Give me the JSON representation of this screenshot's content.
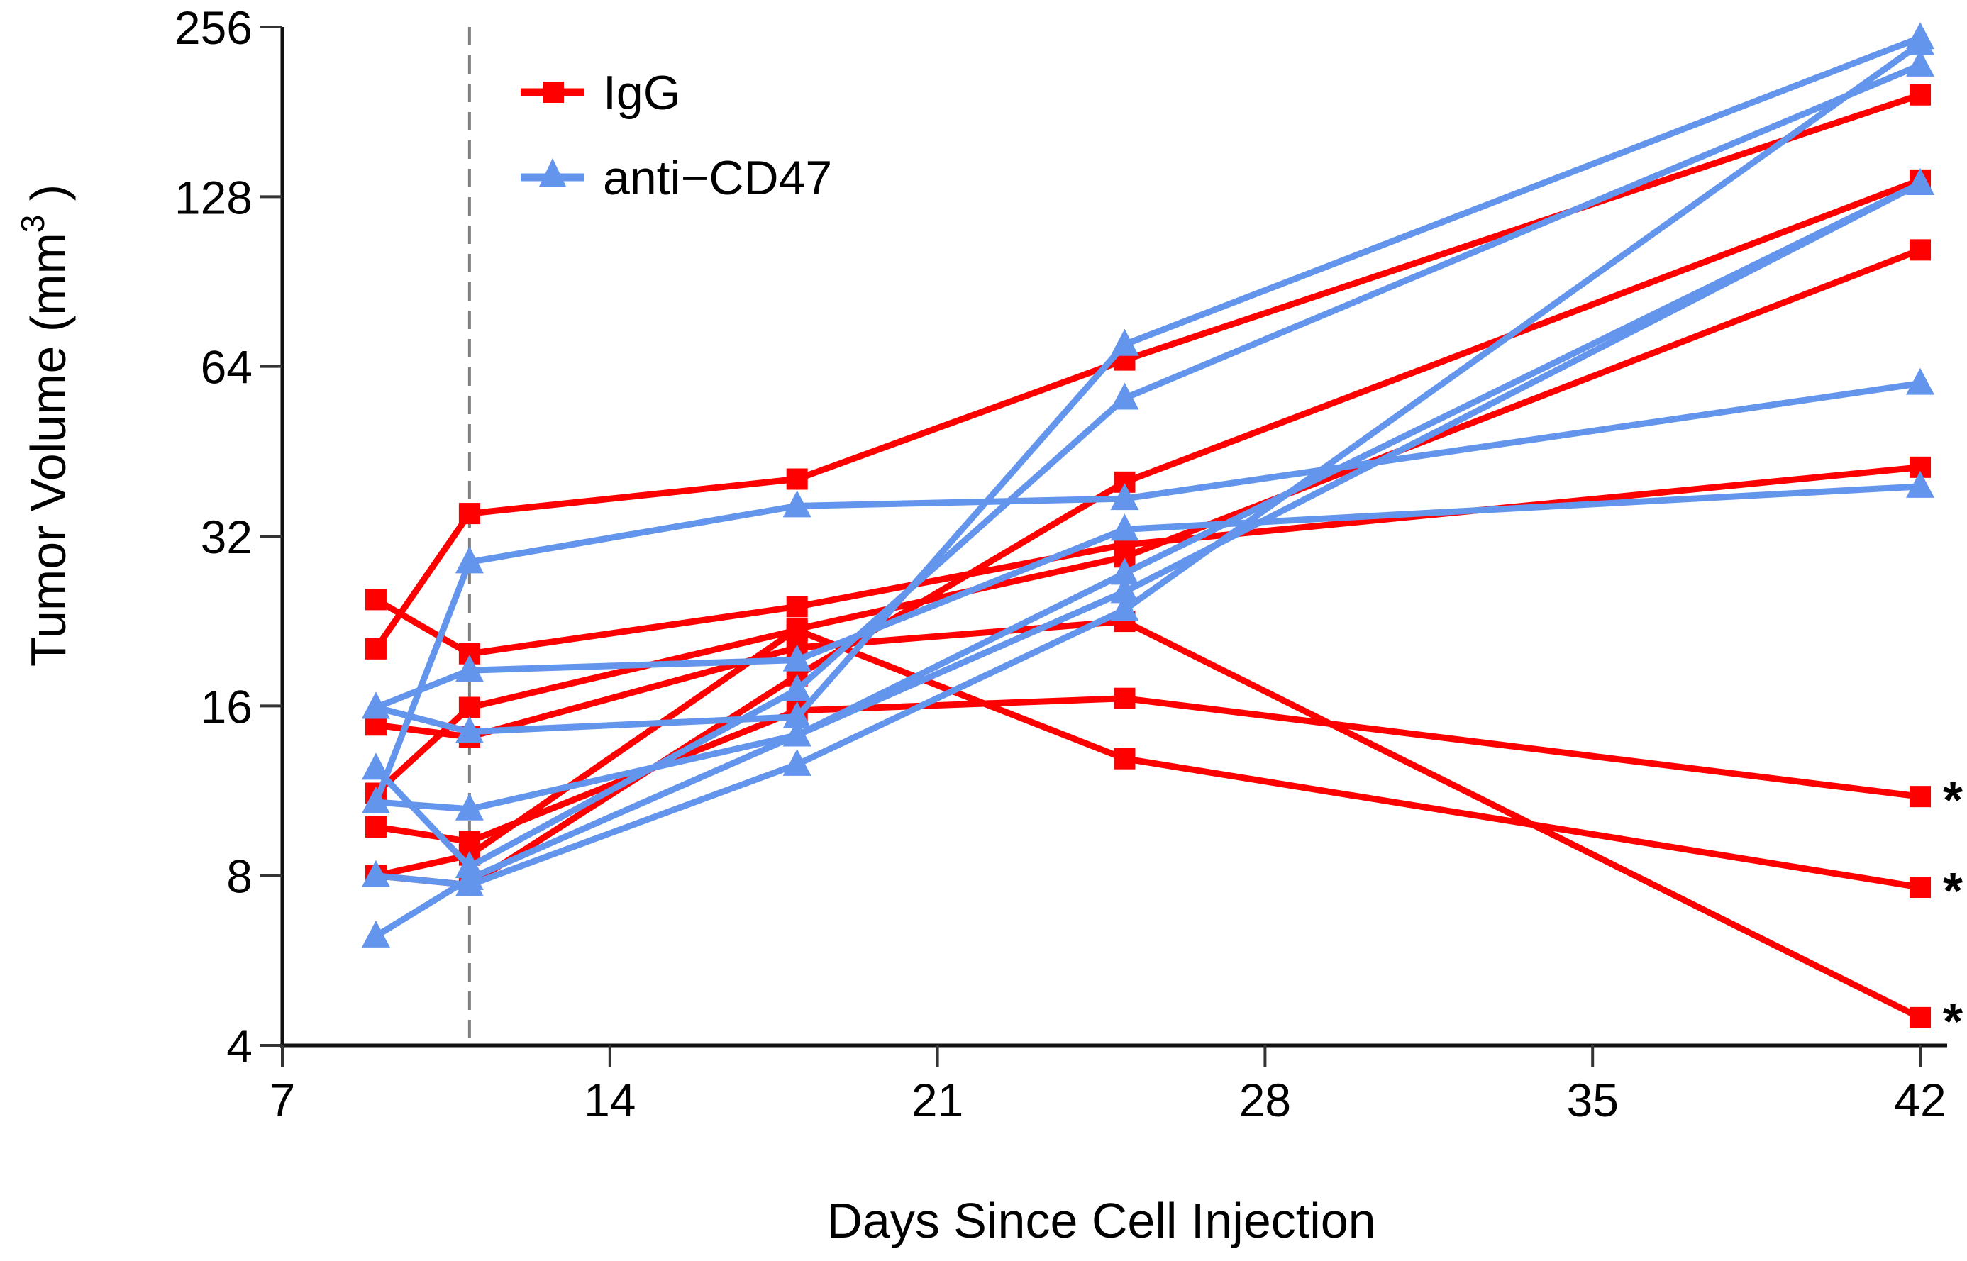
{
  "chart_data": {
    "type": "line",
    "title": "",
    "xlabel": "Days Since Cell Injection",
    "ylabel": "Tumor Volume (mm",
    "ylabel_superscript": "3",
    "ylabel_suffix": " )",
    "yscale": "log2",
    "xlim": [
      7,
      42
    ],
    "ylim": [
      4,
      256
    ],
    "xticks": [
      7,
      14,
      21,
      28,
      35,
      42
    ],
    "xtick_labels": [
      "7",
      "14",
      "21",
      "28",
      "35",
      "42"
    ],
    "yticks": [
      4,
      8,
      16,
      32,
      64,
      128,
      256
    ],
    "ytick_labels": [
      "4",
      "8",
      "16",
      "32",
      "64",
      "128",
      "256"
    ],
    "grid": false,
    "legend_position": "top-left",
    "reference_line": {
      "x": 11,
      "style": "dashed",
      "color": "#808080"
    },
    "groups": [
      {
        "name": "IgG",
        "color": "#FF0000",
        "marker": "square"
      },
      {
        "name": "anti−CD47",
        "color": "#6495ED",
        "marker": "triangle"
      }
    ],
    "series": [
      {
        "name": "IgG",
        "group": 0,
        "x": [
          9,
          11,
          18,
          25,
          42
        ],
        "y": [
          20.2,
          35.1,
          40.4,
          65.7,
          194
        ]
      },
      {
        "name": "IgG",
        "group": 0,
        "x": [
          9,
          11,
          18,
          25,
          42
        ],
        "y": [
          24.7,
          19.8,
          24.0,
          30.9,
          42.4
        ]
      },
      {
        "name": "IgG",
        "group": 0,
        "x": [
          9,
          11,
          18,
          25,
          42
        ],
        "y": [
          14.8,
          14.1,
          20.3,
          22.6,
          4.48
        ]
      },
      {
        "name": "IgG",
        "group": 0,
        "x": [
          9,
          11,
          18,
          25,
          42
        ],
        "y": [
          11.2,
          15.9,
          21.8,
          12.9,
          7.63
        ]
      },
      {
        "name": "IgG",
        "group": 0,
        "x": [
          9,
          11,
          18,
          25,
          42
        ],
        "y": [
          9.76,
          9.2,
          15.7,
          16.5,
          11.05
        ]
      },
      {
        "name": "IgG",
        "group": 0,
        "x": [
          9,
          11,
          18,
          25,
          42
        ],
        "y": [
          8.0,
          7.7,
          18.1,
          39.9,
          137
        ]
      },
      {
        "name": "IgG",
        "group": 0,
        "x": [
          9,
          11,
          18,
          25,
          42
        ],
        "y": [
          8.0,
          8.7,
          21.9,
          29.4,
          103
        ]
      },
      {
        "name": "anti−CD47",
        "group": 1,
        "x": [
          9,
          11,
          18,
          25,
          42
        ],
        "y": [
          10.8,
          28.8,
          36.2,
          37.3,
          59.7
        ]
      },
      {
        "name": "anti−CD47",
        "group": 1,
        "x": [
          9,
          11,
          18,
          25,
          42
        ],
        "y": [
          15.9,
          18.5,
          19.3,
          32.9,
          39.2
        ]
      },
      {
        "name": "anti−CD47",
        "group": 1,
        "x": [
          9,
          11,
          18,
          25,
          42
        ],
        "y": [
          15.9,
          14.4,
          15.3,
          70.0,
          245
        ]
      },
      {
        "name": "anti−CD47",
        "group": 1,
        "x": [
          9,
          11,
          18,
          25,
          42
        ],
        "y": [
          12.4,
          8.3,
          17.1,
          56.2,
          219
        ]
      },
      {
        "name": "anti−CD47",
        "group": 1,
        "x": [
          9,
          11,
          18,
          25,
          42
        ],
        "y": [
          10.8,
          10.5,
          14.2,
          27.5,
          135
        ]
      },
      {
        "name": "anti−CD47",
        "group": 1,
        "x": [
          9,
          11,
          18,
          25,
          42
        ],
        "y": [
          8.0,
          7.7,
          12.6,
          23.7,
          239
        ]
      },
      {
        "name": "anti−CD47",
        "group": 1,
        "x": [
          9,
          11,
          18,
          25,
          42
        ],
        "y": [
          6.25,
          7.9,
          14.2,
          25.5,
          135
        ]
      }
    ],
    "annotations": [
      {
        "text": "*",
        "x": 42,
        "y": 11.05
      },
      {
        "text": "*",
        "x": 42,
        "y": 7.63
      },
      {
        "text": "*",
        "x": 42,
        "y": 4.48
      }
    ]
  }
}
